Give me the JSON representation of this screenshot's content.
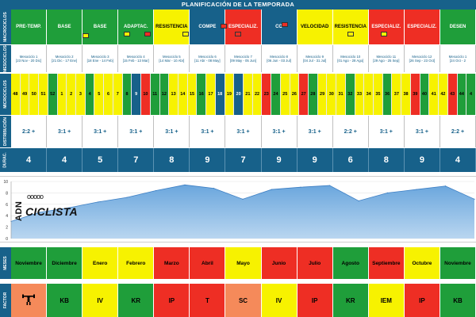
{
  "header": {
    "title": "PLANIFICACIÓN DE LA TEMPORADA"
  },
  "labels": {
    "macrociclos": "MACROCICLOS",
    "mesociclos": "MESOCICLOS",
    "microciclos": "MICROCICLOS",
    "distribucion": "DISTRIBUCIÓN",
    "duracion": "DURAC.",
    "meses": "MESES",
    "factor": "FACTOR"
  },
  "colors": {
    "blue": "#17618a",
    "green": "#1f9e3a",
    "yellow": "#f7f200",
    "red": "#ee2e24",
    "orange": "#f58a5a",
    "white": "#ffffff"
  },
  "macrociclos": [
    {
      "label": "PRE-TEMP.",
      "color": "green"
    },
    {
      "label": "BASE",
      "color": "green"
    },
    {
      "label": "BASE",
      "color": "green"
    },
    {
      "label": "ADAPTAC.",
      "color": "green"
    },
    {
      "label": "RESISTENCIA",
      "color": "yellow"
    },
    {
      "label": "COMPE",
      "color": "blue"
    },
    {
      "label": "ESPECIALIZ.",
      "color": "red"
    },
    {
      "label": "CO",
      "color": "blue"
    },
    {
      "label": "VELOCIDAD",
      "color": "yellow"
    },
    {
      "label": "RESISTENCIA",
      "color": "yellow"
    },
    {
      "label": "ESPECIALIZ.",
      "color": "red"
    },
    {
      "label": "ESPECIALIZ.",
      "color": "red"
    },
    {
      "label": "DESEN",
      "color": "green"
    }
  ],
  "mesociclos": [
    {
      "name": "Mesociclo 1",
      "dates": "[23 Nov - 20 Dic]"
    },
    {
      "name": "Mesociclo 2",
      "dates": "[21 Dic - 17 Ene]"
    },
    {
      "name": "Mesociclo 3",
      "dates": "[18 Ene - 14 Feb]"
    },
    {
      "name": "Mesociclo 4",
      "dates": "[15 Feb - 13 Mar]"
    },
    {
      "name": "Mesociclo 5",
      "dates": "[14 Mar - 10 Abr]"
    },
    {
      "name": "Mesociclo 6",
      "dates": "[11 Abr - 08 May]"
    },
    {
      "name": "Mesociclo 7",
      "dates": "[09 May - 05 Jun]"
    },
    {
      "name": "Mesociclo 8",
      "dates": "[06 Jun - 03 Jul]"
    },
    {
      "name": "Mesociclo 9",
      "dates": "[04 Jul - 31 Jul]"
    },
    {
      "name": "Mesociclo 10",
      "dates": "[01 Ago - 28 Ago]"
    },
    {
      "name": "Mesociclo 11",
      "dates": "[29 Ago - 25 Sep]"
    },
    {
      "name": "Mesociclo 12",
      "dates": "[26 Sep - 23 Oct]"
    },
    {
      "name": "Mesociclo 1",
      "dates": "[24 Oct - 2"
    }
  ],
  "microciclos": [
    {
      "n": "48",
      "c": "yellow"
    },
    {
      "n": "49",
      "c": "yellow"
    },
    {
      "n": "50",
      "c": "yellow"
    },
    {
      "n": "51",
      "c": "yellow"
    },
    {
      "n": "52",
      "c": "green"
    },
    {
      "n": "1",
      "c": "yellow"
    },
    {
      "n": "2",
      "c": "yellow"
    },
    {
      "n": "3",
      "c": "yellow"
    },
    {
      "n": "4",
      "c": "green"
    },
    {
      "n": "5",
      "c": "yellow"
    },
    {
      "n": "6",
      "c": "yellow"
    },
    {
      "n": "7",
      "c": "yellow"
    },
    {
      "n": "8",
      "c": "green"
    },
    {
      "n": "9",
      "c": "blue"
    },
    {
      "n": "10",
      "c": "red"
    },
    {
      "n": "11",
      "c": "green"
    },
    {
      "n": "12",
      "c": "green"
    },
    {
      "n": "13",
      "c": "yellow"
    },
    {
      "n": "14",
      "c": "yellow"
    },
    {
      "n": "15",
      "c": "yellow"
    },
    {
      "n": "16",
      "c": "green"
    },
    {
      "n": "17",
      "c": "yellow"
    },
    {
      "n": "18",
      "c": "blue"
    },
    {
      "n": "19",
      "c": "yellow"
    },
    {
      "n": "20",
      "c": "blue"
    },
    {
      "n": "21",
      "c": "yellow"
    },
    {
      "n": "22",
      "c": "yellow"
    },
    {
      "n": "23",
      "c": "red"
    },
    {
      "n": "24",
      "c": "green"
    },
    {
      "n": "25",
      "c": "yellow"
    },
    {
      "n": "26",
      "c": "yellow"
    },
    {
      "n": "27",
      "c": "red"
    },
    {
      "n": "28",
      "c": "green"
    },
    {
      "n": "29",
      "c": "yellow"
    },
    {
      "n": "30",
      "c": "yellow"
    },
    {
      "n": "31",
      "c": "yellow"
    },
    {
      "n": "32",
      "c": "green"
    },
    {
      "n": "33",
      "c": "yellow"
    },
    {
      "n": "34",
      "c": "yellow"
    },
    {
      "n": "35",
      "c": "yellow"
    },
    {
      "n": "36",
      "c": "green"
    },
    {
      "n": "37",
      "c": "yellow"
    },
    {
      "n": "38",
      "c": "yellow"
    },
    {
      "n": "39",
      "c": "red"
    },
    {
      "n": "40",
      "c": "green"
    },
    {
      "n": "41",
      "c": "yellow"
    },
    {
      "n": "42",
      "c": "yellow"
    },
    {
      "n": "43",
      "c": "red"
    },
    {
      "n": "44",
      "c": "green"
    },
    {
      "n": "4",
      "c": "green"
    }
  ],
  "distribucion": [
    "2:2 +",
    "3:1 +",
    "3:1 +",
    "3:1 +",
    "3:1 +",
    "3:1 +",
    "3:1 +",
    "3:1 +",
    "3:1 +",
    "2:2 +",
    "3:1 +",
    "3:1 +",
    "2:2 +"
  ],
  "duracion": [
    "4",
    "4",
    "5",
    "7",
    "8",
    "9",
    "7",
    "9",
    "9",
    "6",
    "8",
    "9",
    "4"
  ],
  "meses": [
    {
      "label": "Noviembre",
      "color": "green"
    },
    {
      "label": "Diciembre",
      "color": "green"
    },
    {
      "label": "Enero",
      "color": "yellow"
    },
    {
      "label": "Febrero",
      "color": "yellow"
    },
    {
      "label": "Marzo",
      "color": "red"
    },
    {
      "label": "Abril",
      "color": "red"
    },
    {
      "label": "Mayo",
      "color": "yellow"
    },
    {
      "label": "Junio",
      "color": "red"
    },
    {
      "label": "Julio",
      "color": "red"
    },
    {
      "label": "Agosto",
      "color": "green"
    },
    {
      "label": "Septiembre",
      "color": "red"
    },
    {
      "label": "Octubre",
      "color": "yellow"
    },
    {
      "label": "Noviembre",
      "color": "green"
    }
  ],
  "factor": [
    {
      "label": "",
      "color": "orange",
      "icon": "weightlifter-icon"
    },
    {
      "label": "KB",
      "color": "green"
    },
    {
      "label": "IV",
      "color": "yellow"
    },
    {
      "label": "KR",
      "color": "green"
    },
    {
      "label": "IP",
      "color": "red"
    },
    {
      "label": "T",
      "color": "red"
    },
    {
      "label": "SC",
      "color": "orange"
    },
    {
      "label": "IV",
      "color": "yellow"
    },
    {
      "label": "IP",
      "color": "red"
    },
    {
      "label": "KR",
      "color": "green"
    },
    {
      "label": "IEM",
      "color": "yellow"
    },
    {
      "label": "IP",
      "color": "red"
    },
    {
      "label": "KB",
      "color": "green"
    }
  ],
  "logo": {
    "adn": "ADN",
    "chain": "ooooo",
    "ciclista": "CICLISTA"
  },
  "chart_data": {
    "type": "area",
    "ylim": [
      0,
      10
    ],
    "yticks": [
      "0",
      "2",
      "4",
      "6",
      "8",
      "10"
    ],
    "values": [
      3,
      4.6,
      5.4,
      6.4,
      7.2,
      8.4,
      9.4,
      8.8,
      6.9,
      8.6,
      9.0,
      9.3,
      6.6,
      8.0,
      8.6,
      9.2,
      6.9
    ]
  }
}
